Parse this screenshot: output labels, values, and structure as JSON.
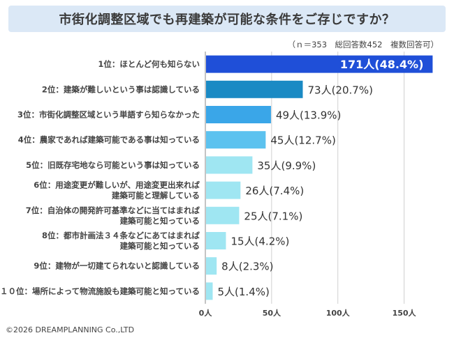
{
  "title": "市街化調整区域でも再建築が可能な条件をご存じですか？",
  "note": "（ｎ＝353　総回答数452　複数回答可）",
  "copyright": "©2026 DREAMPLANNING Co.,LTD",
  "chart_data": {
    "type": "bar",
    "orientation": "horizontal",
    "categories": [
      [
        "1位：ほとんど何も知らない"
      ],
      [
        "2位：建築が難しいという事は認識している"
      ],
      [
        "3位：市街化調整区域という単語すら知らなかった"
      ],
      [
        "4位：農家であれば建築可能である事は知っている"
      ],
      [
        "5位：旧既存宅地なら可能という事は知っている"
      ],
      [
        "6位：用途変更が難しいが、用途変更出来れば",
        "建築可能と理解している"
      ],
      [
        "7位：自治体の開発許可基準などに当てはまれば",
        "建築可能と知っている"
      ],
      [
        "8位：都市計画法３４条などにあてはまれば",
        "建築可能と知っている"
      ],
      [
        "9位：建物が一切建てられないと認識している"
      ],
      [
        "１０位：場所によって物流施設も建築可能と知っている"
      ]
    ],
    "values": [
      171,
      73,
      49,
      45,
      35,
      26,
      25,
      15,
      8,
      5
    ],
    "value_labels": [
      "171人(48.4%)",
      "73人(20.7%)",
      "49人(13.9%)",
      "45人(12.7%)",
      "35人(9.9%)",
      "26人(7.4%)",
      "25人(7.1%)",
      "15人(4.2%)",
      "8人(2.3%)",
      "5人(1.4%)"
    ],
    "xticks": [
      "0人",
      "50人",
      "100人",
      "150人"
    ],
    "xtick_values": [
      0,
      50,
      100,
      150
    ],
    "xlim": [
      0,
      175
    ],
    "colors": [
      "#1f4fd8",
      "#1a8ac4",
      "#3aa6e8",
      "#5cc2ef",
      "#9fe6f2",
      "#9fe6f2",
      "#9fe6f2",
      "#9fe6f2",
      "#9fe6f2",
      "#9fe6f2"
    ],
    "grid": true,
    "legend": "none"
  }
}
